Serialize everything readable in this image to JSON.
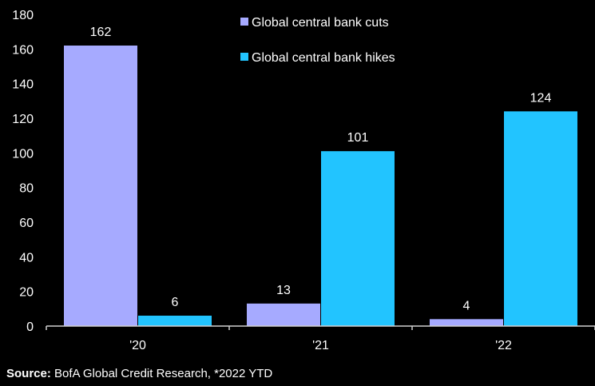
{
  "chart_data": {
    "type": "bar",
    "categories": [
      "'20",
      "'21",
      "'22"
    ],
    "series": [
      {
        "name": "Global central bank cuts",
        "values": [
          162,
          13,
          4
        ],
        "color": "#a6aaff"
      },
      {
        "name": "Global central bank hikes",
        "values": [
          6,
          101,
          124
        ],
        "color": "#22c4ff"
      }
    ],
    "ylim": [
      0,
      180
    ],
    "yticks": [
      0,
      20,
      40,
      60,
      80,
      100,
      120,
      140,
      160,
      180
    ],
    "title": "",
    "xlabel": "",
    "ylabel": "",
    "legend_position": "top-center",
    "grid": false
  },
  "source": {
    "label": "Source:",
    "text": "BofA Global Credit Research, *2022 YTD"
  }
}
